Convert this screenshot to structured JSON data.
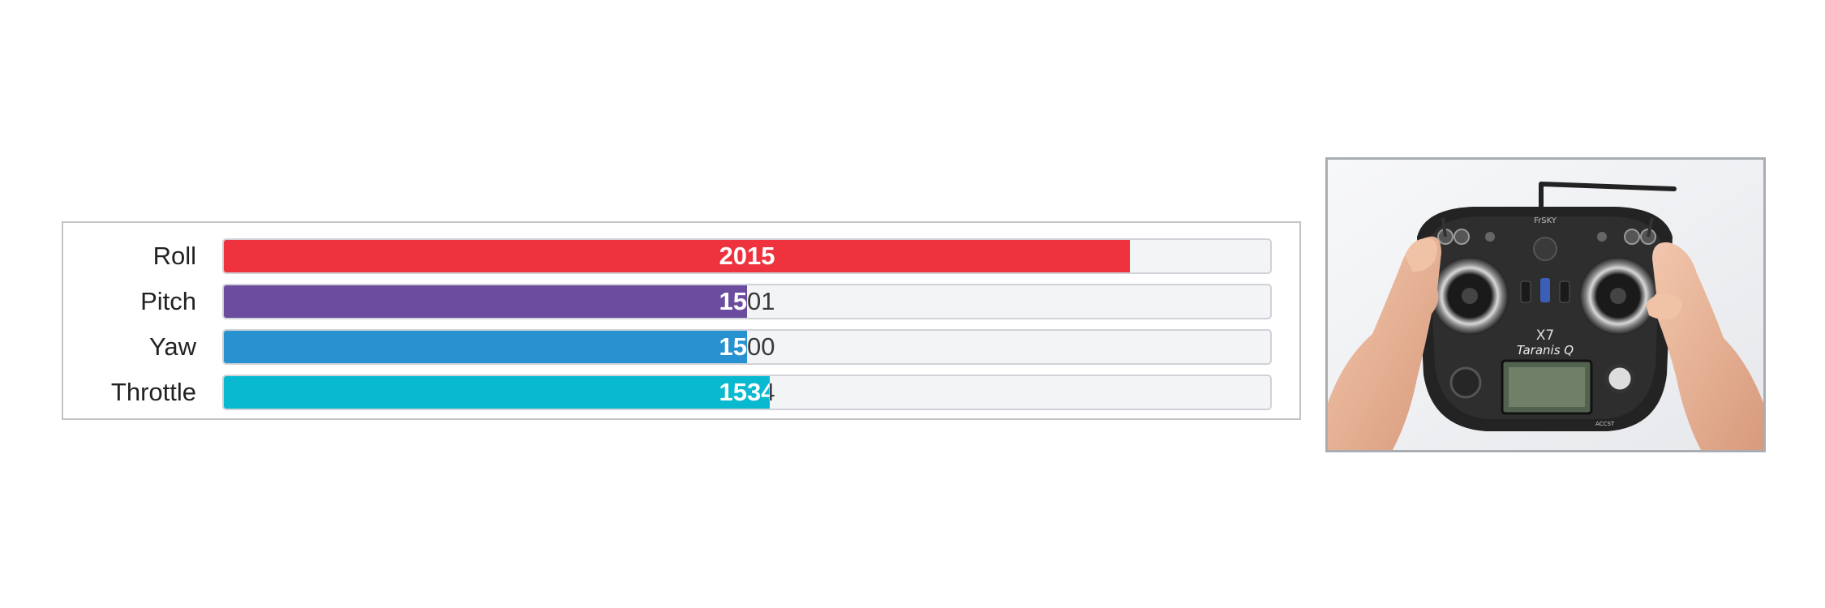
{
  "channels": [
    {
      "label": "Roll",
      "value": "2015",
      "fill_fraction": 0.866,
      "color": "#ee333e"
    },
    {
      "label": "Pitch",
      "value": "1501",
      "fill_fraction": 0.5,
      "color": "#6b4c9f"
    },
    {
      "label": "Yaw",
      "value": "1500",
      "fill_fraction": 0.5,
      "color": "#2891d0"
    },
    {
      "label": "Throttle",
      "value": "1534",
      "fill_fraction": 0.522,
      "color": "#08b9cf"
    }
  ],
  "transmitter": {
    "brand": "FrSKY",
    "model": "X7",
    "name": "Taranis Q",
    "badge": "ACCST",
    "icon": "rc-transmitter-photo"
  }
}
